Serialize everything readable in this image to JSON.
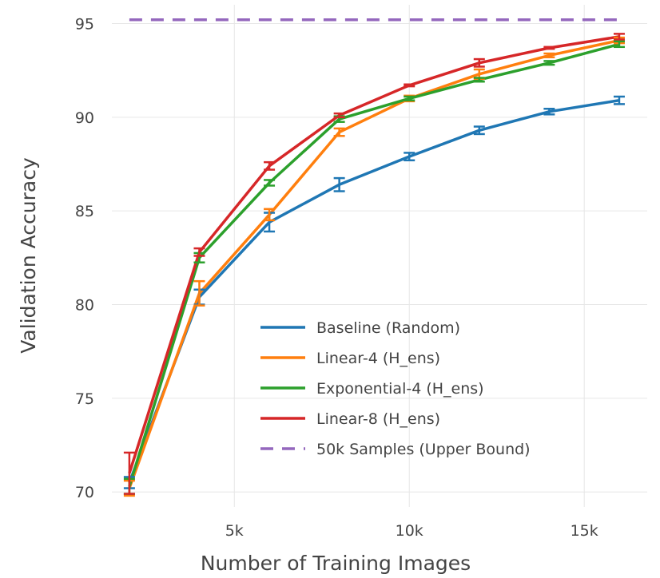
{
  "chart_data": {
    "type": "line",
    "xlabel": "Number of Training Images",
    "ylabel": "Validation Accuracy",
    "xlim": [
      1500,
      16800
    ],
    "ylim": [
      69.2,
      96.0
    ],
    "x_ticks": [
      {
        "value": 5000,
        "label": "5k"
      },
      {
        "value": 10000,
        "label": "10k"
      },
      {
        "value": 15000,
        "label": "15k"
      }
    ],
    "y_ticks": [
      {
        "value": 70,
        "label": "70"
      },
      {
        "value": 75,
        "label": "75"
      },
      {
        "value": 80,
        "label": "80"
      },
      {
        "value": 85,
        "label": "85"
      },
      {
        "value": 90,
        "label": "90"
      },
      {
        "value": 95,
        "label": "95"
      }
    ],
    "grid": true,
    "legend_position": "bottom-right",
    "series": [
      {
        "name": "Baseline (Random)",
        "color": "#1f77b4",
        "x": [
          2000,
          4000,
          6000,
          8000,
          10000,
          12000,
          14000,
          16000
        ],
        "y": [
          70.5,
          80.4,
          84.4,
          86.4,
          87.9,
          89.3,
          90.3,
          90.9
        ],
        "err": [
          0.3,
          0.4,
          0.5,
          0.35,
          0.2,
          0.2,
          0.15,
          0.2
        ]
      },
      {
        "name": "Linear-4 (H_ens)",
        "color": "#ff7f0e",
        "x": [
          2000,
          4000,
          6000,
          8000,
          10000,
          12000,
          14000,
          16000
        ],
        "y": [
          70.2,
          80.6,
          84.8,
          89.2,
          91.0,
          92.3,
          93.3,
          94.1
        ],
        "err": [
          0.4,
          0.65,
          0.3,
          0.2,
          0.15,
          0.25,
          0.1,
          0.15
        ]
      },
      {
        "name": "Exponential-4 (H_ens)",
        "color": "#2ca02c",
        "x": [
          2000,
          4000,
          6000,
          8000,
          10000,
          12000,
          14000,
          16000
        ],
        "y": [
          70.3,
          82.5,
          86.5,
          89.9,
          91.0,
          92.0,
          92.9,
          93.9
        ],
        "err": [
          0.4,
          0.25,
          0.15,
          0.15,
          0.1,
          0.1,
          0.1,
          0.15
        ]
      },
      {
        "name": "Linear-8 (H_ens)",
        "color": "#d62728",
        "x": [
          2000,
          4000,
          6000,
          8000,
          10000,
          12000,
          14000,
          16000
        ],
        "y": [
          71.0,
          82.8,
          87.4,
          90.1,
          91.7,
          92.9,
          93.7,
          94.3
        ],
        "err": [
          1.1,
          0.2,
          0.2,
          0.1,
          0.05,
          0.2,
          0.05,
          0.15
        ]
      },
      {
        "name": "50k Samples (Upper Bound)",
        "color": "#9467bd",
        "dashed": true,
        "x": [
          2000,
          16000
        ],
        "y": [
          95.2,
          95.2
        ],
        "err": null
      }
    ]
  }
}
